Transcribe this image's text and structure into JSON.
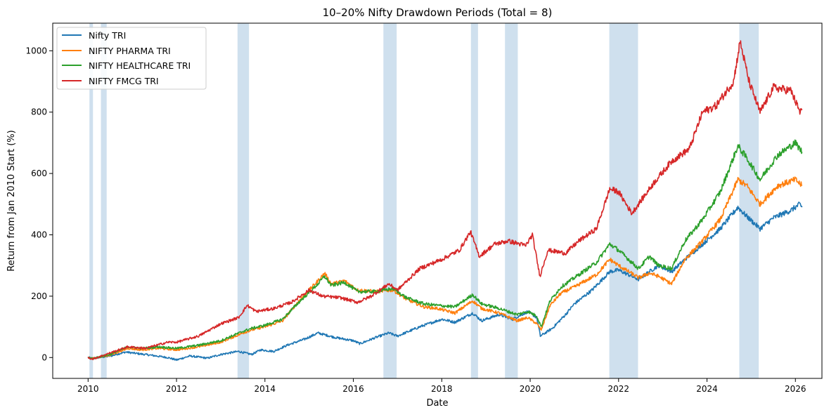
{
  "chart_data": {
    "type": "line",
    "title": "10–20% Nifty Drawdown Periods (Total = 8)",
    "xlabel": "Date",
    "ylabel": "Return from Jan 2010 Start (%)",
    "xlim": [
      2009.2,
      2026.6
    ],
    "ylim": [
      -68,
      1090
    ],
    "x_ticks": [
      2010,
      2012,
      2014,
      2016,
      2018,
      2020,
      2022,
      2024,
      2026
    ],
    "x_tick_labels": [
      "2010",
      "2012",
      "2014",
      "2016",
      "2018",
      "2020",
      "2022",
      "2024",
      "2026"
    ],
    "y_ticks": [
      0,
      200,
      400,
      600,
      800,
      1000
    ],
    "y_tick_labels": [
      "0",
      "200",
      "400",
      "600",
      "800",
      "1000"
    ],
    "grid": false,
    "legend_position": "top-left",
    "drawdown_periods": [
      [
        2010.03,
        2010.11
      ],
      [
        2010.29,
        2010.42
      ],
      [
        2013.38,
        2013.64
      ],
      [
        2016.68,
        2016.98
      ],
      [
        2018.66,
        2018.82
      ],
      [
        2019.43,
        2019.72
      ],
      [
        2021.79,
        2022.44
      ],
      [
        2024.73,
        2025.17
      ]
    ],
    "drawdown_color": "#cfe0ee",
    "series": [
      {
        "name": "Nifty TRI",
        "color": "#1f77b4",
        "points": [
          [
            2010.0,
            0
          ],
          [
            2010.1,
            -3
          ],
          [
            2010.5,
            5
          ],
          [
            2010.85,
            18
          ],
          [
            2011.0,
            15
          ],
          [
            2011.4,
            8
          ],
          [
            2011.8,
            0
          ],
          [
            2012.0,
            -8
          ],
          [
            2012.3,
            5
          ],
          [
            2012.7,
            -2
          ],
          [
            2013.0,
            10
          ],
          [
            2013.4,
            20
          ],
          [
            2013.7,
            10
          ],
          [
            2013.9,
            25
          ],
          [
            2014.2,
            20
          ],
          [
            2014.5,
            40
          ],
          [
            2014.9,
            60
          ],
          [
            2015.2,
            80
          ],
          [
            2015.6,
            65
          ],
          [
            2016.0,
            55
          ],
          [
            2016.15,
            45
          ],
          [
            2016.5,
            65
          ],
          [
            2016.8,
            80
          ],
          [
            2017.0,
            70
          ],
          [
            2017.5,
            100
          ],
          [
            2018.0,
            125
          ],
          [
            2018.3,
            115
          ],
          [
            2018.7,
            145
          ],
          [
            2018.9,
            120
          ],
          [
            2019.3,
            140
          ],
          [
            2019.6,
            125
          ],
          [
            2019.95,
            150
          ],
          [
            2020.15,
            130
          ],
          [
            2020.23,
            70
          ],
          [
            2020.5,
            95
          ],
          [
            2020.8,
            140
          ],
          [
            2021.0,
            175
          ],
          [
            2021.4,
            220
          ],
          [
            2021.8,
            280
          ],
          [
            2022.0,
            285
          ],
          [
            2022.45,
            255
          ],
          [
            2022.9,
            300
          ],
          [
            2023.2,
            280
          ],
          [
            2023.5,
            320
          ],
          [
            2023.9,
            370
          ],
          [
            2024.3,
            420
          ],
          [
            2024.7,
            490
          ],
          [
            2024.9,
            460
          ],
          [
            2025.2,
            420
          ],
          [
            2025.5,
            455
          ],
          [
            2025.9,
            480
          ],
          [
            2026.1,
            500
          ],
          [
            2026.15,
            490
          ]
        ]
      },
      {
        "name": "NIFTY PHARMA TRI",
        "color": "#ff7f0e",
        "points": [
          [
            2010.0,
            0
          ],
          [
            2010.1,
            -3
          ],
          [
            2010.5,
            8
          ],
          [
            2010.9,
            30
          ],
          [
            2011.2,
            25
          ],
          [
            2011.6,
            30
          ],
          [
            2012.0,
            25
          ],
          [
            2012.5,
            35
          ],
          [
            2013.0,
            50
          ],
          [
            2013.5,
            80
          ],
          [
            2013.7,
            90
          ],
          [
            2014.0,
            100
          ],
          [
            2014.4,
            120
          ],
          [
            2014.8,
            190
          ],
          [
            2015.2,
            250
          ],
          [
            2015.35,
            275
          ],
          [
            2015.5,
            240
          ],
          [
            2015.8,
            250
          ],
          [
            2016.1,
            220
          ],
          [
            2016.5,
            215
          ],
          [
            2016.9,
            220
          ],
          [
            2017.2,
            190
          ],
          [
            2017.6,
            165
          ],
          [
            2017.9,
            160
          ],
          [
            2018.3,
            145
          ],
          [
            2018.7,
            185
          ],
          [
            2018.9,
            160
          ],
          [
            2019.3,
            145
          ],
          [
            2019.7,
            120
          ],
          [
            2019.95,
            130
          ],
          [
            2020.15,
            110
          ],
          [
            2020.25,
            90
          ],
          [
            2020.45,
            170
          ],
          [
            2020.7,
            210
          ],
          [
            2021.0,
            230
          ],
          [
            2021.5,
            270
          ],
          [
            2021.8,
            320
          ],
          [
            2022.0,
            300
          ],
          [
            2022.45,
            260
          ],
          [
            2022.7,
            275
          ],
          [
            2022.9,
            265
          ],
          [
            2023.2,
            240
          ],
          [
            2023.5,
            320
          ],
          [
            2023.9,
            380
          ],
          [
            2024.3,
            450
          ],
          [
            2024.7,
            580
          ],
          [
            2024.9,
            560
          ],
          [
            2025.2,
            500
          ],
          [
            2025.6,
            560
          ],
          [
            2026.0,
            580
          ],
          [
            2026.15,
            560
          ]
        ]
      },
      {
        "name": "NIFTY HEALTHCARE TRI",
        "color": "#2ca02c",
        "points": [
          [
            2010.0,
            0
          ],
          [
            2010.1,
            -3
          ],
          [
            2010.5,
            10
          ],
          [
            2010.9,
            35
          ],
          [
            2011.2,
            30
          ],
          [
            2011.6,
            35
          ],
          [
            2012.0,
            30
          ],
          [
            2012.5,
            40
          ],
          [
            2013.0,
            55
          ],
          [
            2013.5,
            85
          ],
          [
            2013.7,
            95
          ],
          [
            2014.0,
            105
          ],
          [
            2014.4,
            125
          ],
          [
            2014.8,
            185
          ],
          [
            2015.2,
            240
          ],
          [
            2015.35,
            265
          ],
          [
            2015.5,
            235
          ],
          [
            2015.8,
            245
          ],
          [
            2016.1,
            215
          ],
          [
            2016.5,
            215
          ],
          [
            2016.9,
            225
          ],
          [
            2017.2,
            195
          ],
          [
            2017.6,
            175
          ],
          [
            2017.9,
            170
          ],
          [
            2018.3,
            165
          ],
          [
            2018.7,
            205
          ],
          [
            2018.9,
            175
          ],
          [
            2019.3,
            160
          ],
          [
            2019.7,
            140
          ],
          [
            2019.95,
            150
          ],
          [
            2020.15,
            135
          ],
          [
            2020.25,
            100
          ],
          [
            2020.45,
            185
          ],
          [
            2020.7,
            230
          ],
          [
            2021.0,
            260
          ],
          [
            2021.5,
            310
          ],
          [
            2021.8,
            370
          ],
          [
            2022.0,
            350
          ],
          [
            2022.45,
            290
          ],
          [
            2022.7,
            330
          ],
          [
            2022.9,
            300
          ],
          [
            2023.2,
            290
          ],
          [
            2023.5,
            380
          ],
          [
            2023.9,
            450
          ],
          [
            2024.3,
            540
          ],
          [
            2024.7,
            690
          ],
          [
            2024.9,
            650
          ],
          [
            2025.2,
            580
          ],
          [
            2025.6,
            660
          ],
          [
            2026.0,
            700
          ],
          [
            2026.15,
            670
          ]
        ]
      },
      {
        "name": "NIFTY FMCG TRI",
        "color": "#d62728",
        "points": [
          [
            2010.0,
            0
          ],
          [
            2010.1,
            -5
          ],
          [
            2010.4,
            10
          ],
          [
            2010.9,
            35
          ],
          [
            2011.3,
            30
          ],
          [
            2011.8,
            50
          ],
          [
            2012.0,
            50
          ],
          [
            2012.5,
            70
          ],
          [
            2013.0,
            110
          ],
          [
            2013.4,
            130
          ],
          [
            2013.6,
            170
          ],
          [
            2013.8,
            150
          ],
          [
            2014.2,
            160
          ],
          [
            2014.6,
            180
          ],
          [
            2015.0,
            220
          ],
          [
            2015.3,
            200
          ],
          [
            2015.7,
            195
          ],
          [
            2016.1,
            180
          ],
          [
            2016.4,
            200
          ],
          [
            2016.8,
            240
          ],
          [
            2017.0,
            220
          ],
          [
            2017.5,
            290
          ],
          [
            2018.0,
            320
          ],
          [
            2018.4,
            350
          ],
          [
            2018.65,
            410
          ],
          [
            2018.85,
            330
          ],
          [
            2019.2,
            370
          ],
          [
            2019.5,
            380
          ],
          [
            2019.9,
            365
          ],
          [
            2020.05,
            400
          ],
          [
            2020.22,
            265
          ],
          [
            2020.4,
            350
          ],
          [
            2020.8,
            340
          ],
          [
            2021.1,
            380
          ],
          [
            2021.5,
            420
          ],
          [
            2021.8,
            550
          ],
          [
            2022.0,
            540
          ],
          [
            2022.3,
            470
          ],
          [
            2022.45,
            500
          ],
          [
            2022.8,
            570
          ],
          [
            2023.2,
            640
          ],
          [
            2023.6,
            680
          ],
          [
            2023.9,
            800
          ],
          [
            2024.2,
            820
          ],
          [
            2024.6,
            900
          ],
          [
            2024.75,
            1030
          ],
          [
            2024.95,
            900
          ],
          [
            2025.2,
            800
          ],
          [
            2025.5,
            880
          ],
          [
            2025.9,
            870
          ],
          [
            2026.1,
            800
          ],
          [
            2026.15,
            810
          ]
        ]
      }
    ]
  }
}
